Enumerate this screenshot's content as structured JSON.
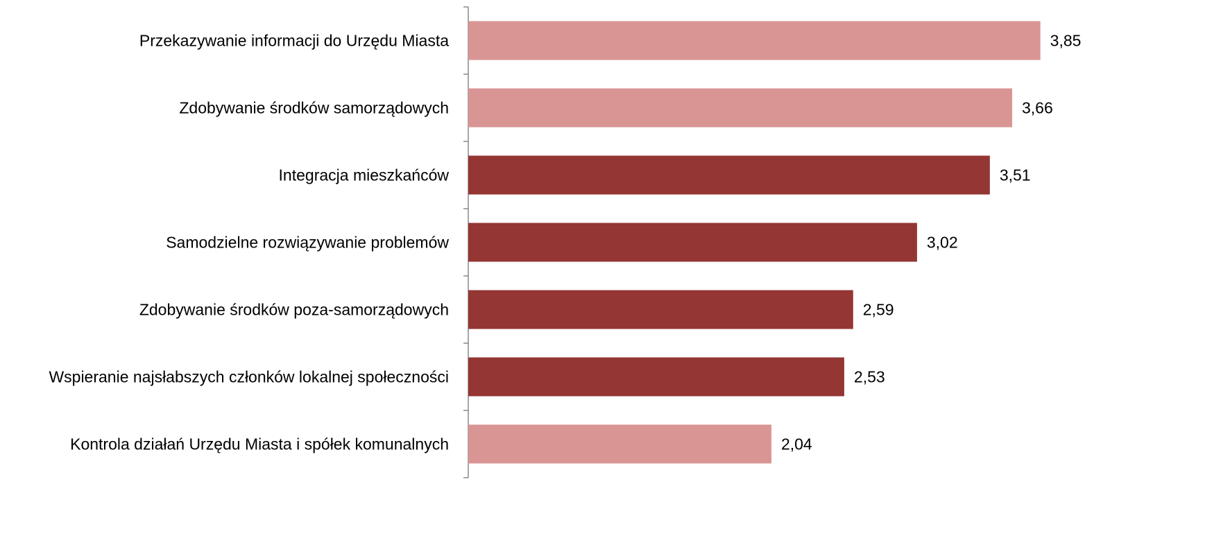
{
  "chart_data": {
    "type": "bar",
    "orientation": "horizontal",
    "categories": [
      "Przekazywanie informacji do Urzędu Miasta",
      "Zdobywanie środków samorządowych",
      "Integracja mieszkańców",
      "Samodzielne rozwiązywanie problemów",
      "Zdobywanie środków poza-samorządowych",
      "Wspieranie najsłabszych członków lokalnej społeczności",
      "Kontrola działań Urzędu Miasta i spółek komunalnych"
    ],
    "values": [
      3.85,
      3.66,
      3.51,
      3.02,
      2.59,
      2.53,
      2.04
    ],
    "value_labels": [
      "3,85",
      "3,66",
      "3,51",
      "3,02",
      "2,59",
      "2,53",
      "2,04"
    ],
    "colors": [
      "#d99594",
      "#d99594",
      "#943634",
      "#943634",
      "#943634",
      "#943634",
      "#d99594"
    ],
    "xlim": [
      0,
      5
    ]
  }
}
